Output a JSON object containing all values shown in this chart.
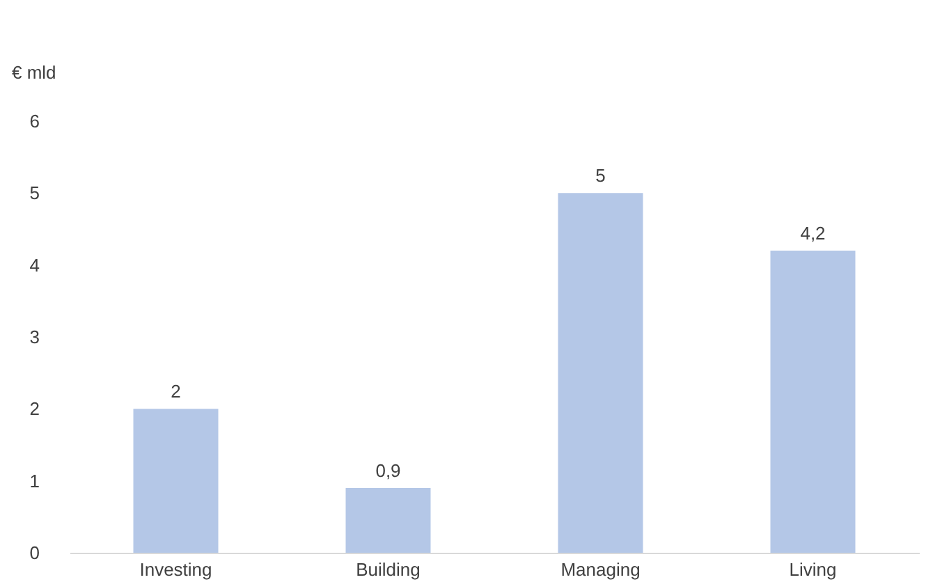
{
  "chart_data": {
    "type": "bar",
    "ylabel": "€ mld",
    "categories": [
      "Investing",
      "Building",
      "Managing",
      "Living"
    ],
    "values": [
      2,
      0.9,
      5,
      4.2
    ],
    "value_labels": [
      "2",
      "0,9",
      "5",
      "4,2"
    ],
    "color": "#b4c7e7",
    "ylim": [
      0,
      6
    ],
    "yticks": [
      0,
      1,
      2,
      3,
      4,
      5,
      6
    ],
    "grid": false
  }
}
